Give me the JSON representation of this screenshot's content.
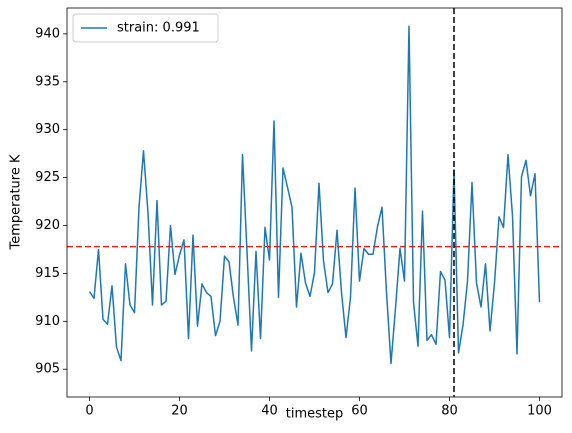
{
  "chart_data": {
    "type": "line",
    "x_label": "timestep",
    "y_label": "Temperature K",
    "x": [
      0,
      1,
      2,
      3,
      4,
      5,
      6,
      7,
      8,
      9,
      10,
      11,
      12,
      13,
      14,
      15,
      16,
      17,
      18,
      19,
      20,
      21,
      22,
      23,
      24,
      25,
      26,
      27,
      28,
      29,
      30,
      31,
      32,
      33,
      34,
      35,
      36,
      37,
      38,
      39,
      40,
      41,
      42,
      43,
      44,
      45,
      46,
      47,
      48,
      49,
      50,
      51,
      52,
      53,
      54,
      55,
      56,
      57,
      58,
      59,
      60,
      61,
      62,
      63,
      64,
      65,
      66,
      67,
      68,
      69,
      70,
      71,
      72,
      73,
      74,
      75,
      76,
      77,
      78,
      79,
      80,
      81,
      82,
      83,
      84,
      85,
      86,
      87,
      88,
      89,
      90,
      91,
      92,
      93,
      94,
      95,
      96,
      97,
      98,
      99,
      100
    ],
    "series": [
      {
        "name": "strain: 0.991",
        "color": "#1f77b4",
        "values": [
          913.1,
          912.4,
          917.5,
          910.2,
          909.7,
          913.7,
          907.3,
          905.9,
          916.0,
          911.7,
          910.9,
          921.9,
          927.8,
          921.3,
          911.7,
          922.6,
          911.7,
          912.1,
          920.0,
          914.9,
          916.9,
          918.5,
          908.2,
          919.0,
          909.5,
          913.9,
          913.0,
          912.6,
          908.5,
          910.0,
          916.8,
          916.2,
          912.5,
          909.6,
          927.4,
          917.3,
          906.9,
          917.3,
          908.2,
          919.8,
          916.4,
          930.9,
          912.5,
          926.0,
          924.0,
          921.9,
          911.5,
          917.1,
          914.0,
          912.6,
          915.1,
          924.4,
          916.3,
          913.0,
          913.9,
          919.5,
          913.0,
          908.3,
          912.5,
          923.9,
          914.2,
          917.6,
          917.0,
          917.0,
          919.9,
          921.9,
          913.0,
          905.6,
          911.4,
          917.6,
          914.2,
          940.8,
          912.0,
          907.4,
          921.5,
          908.0,
          908.6,
          907.6,
          915.2,
          914.3,
          908.3,
          925.8,
          906.7,
          909.6,
          914.2,
          924.5,
          914.0,
          911.5,
          916.0,
          909.0,
          914.0,
          920.9,
          919.8,
          927.4,
          921.0,
          906.6,
          925.1,
          926.8,
          923.1,
          925.4,
          912.0
        ]
      }
    ],
    "hline": {
      "value": 917.8,
      "color": "#d62728"
    },
    "vline": {
      "value": 81,
      "color": "#000000"
    },
    "xlim": [
      -5,
      105
    ],
    "xticks": [
      0,
      20,
      40,
      60,
      80,
      100
    ],
    "ylim": [
      902.1,
      942.7
    ],
    "yticks": [
      905,
      910,
      915,
      920,
      925,
      930,
      935,
      940
    ],
    "legend": "upper left"
  }
}
